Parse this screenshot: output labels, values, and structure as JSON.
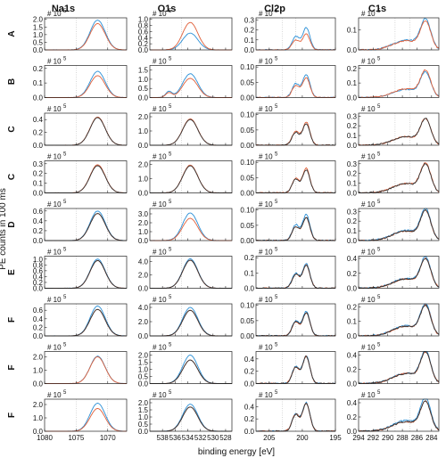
{
  "chart_data": {
    "type": "line",
    "column_titles": [
      "Na1s",
      "O1s",
      "Cl2p",
      "C1s"
    ],
    "row_labels": [
      "A",
      "B",
      "C",
      "C",
      "D",
      "E",
      "F",
      "F",
      "F"
    ],
    "ylabel": "PE counts in 100 ms",
    "xlabel": "binding energy [eV]",
    "scale_label": "# 10",
    "scale_exponent": "5",
    "colors": {
      "series_blue": "#2a8fd6",
      "series_red": "#e0603a",
      "series_dark": "#333333",
      "guide": "#9a9a9a"
    },
    "x_axes": [
      {
        "range": [
          1080,
          1067
        ],
        "ticks": [
          1080,
          1075,
          1070
        ],
        "guides": [
          1075,
          1070
        ]
      },
      {
        "range": [
          540,
          527
        ],
        "ticks": [
          538,
          536,
          534,
          532,
          530,
          528
        ],
        "guides": [
          535
        ]
      },
      {
        "range": [
          207,
          195
        ],
        "ticks": [
          205,
          200,
          195
        ],
        "guides": [
          203,
          201
        ]
      },
      {
        "range": [
          294,
          283
        ],
        "ticks": [
          294,
          292,
          290,
          288,
          286,
          284
        ],
        "guides": [
          289,
          287
        ]
      }
    ],
    "peaks": [
      {
        "center": 1071.6,
        "width": 1.2
      },
      {
        "center": 533.6,
        "width": 1.2
      },
      {
        "center": 199.4,
        "width": 0.55,
        "split": 1.6,
        "ratio": 0.6
      },
      {
        "center": 284.8,
        "width": 0.7
      }
    ],
    "panels": [
      [
        {
          "ylim": [
            0,
            2.1
          ],
          "ticks": [
            "2.0",
            "1.5",
            "1.0",
            "0.5",
            "0.0"
          ],
          "tick_values": [
            2.0,
            1.5,
            1.0,
            0.5,
            0.0
          ],
          "blue": 1.95,
          "red": 1.72,
          "dark": null
        },
        {
          "ylim": [
            0,
            1.05
          ],
          "ticks": [
            "1.0",
            "0.8",
            "0.6",
            "0.4",
            "0.2",
            "0.0"
          ],
          "tick_values": [
            1.0,
            0.8,
            0.6,
            0.4,
            0.2,
            0.0
          ],
          "blue": 0.55,
          "red": 0.9,
          "dark": null
        },
        {
          "ylim": [
            0,
            0.32
          ],
          "ticks": [
            "0.3",
            "0.2",
            "0.1",
            "0.0"
          ],
          "tick_values": [
            0.3,
            0.2,
            0.1,
            0.0
          ],
          "blue": 0.22,
          "red": 0.16,
          "dark": null
        },
        {
          "ylim": [
            0,
            0.16
          ],
          "ticks": [
            "0.1",
            "0.0"
          ],
          "tick_values": [
            0.1,
            0.0
          ],
          "blue": 0.14,
          "red": 0.13,
          "dark": null
        }
      ],
      [
        {
          "ylim": [
            0,
            0.22
          ],
          "ticks": [
            "0.2",
            "0.1",
            "0.0"
          ],
          "tick_values": [
            0.2,
            0.1,
            0.0
          ],
          "blue": 0.18,
          "red": 0.15,
          "dark": null
        },
        {
          "ylim": [
            0,
            1.75
          ],
          "ticks": [
            "1.5",
            "1.0",
            "0.5",
            "0.0"
          ],
          "tick_values": [
            1.5,
            1.0,
            0.5,
            0.0
          ],
          "blue": 1.3,
          "red": 1.05,
          "dark": null
        },
        {
          "ylim": [
            0,
            0.105
          ],
          "ticks": [
            "0.10",
            "0.05",
            "0.00"
          ],
          "tick_values": [
            0.1,
            0.05,
            0.0
          ],
          "blue": 0.075,
          "red": 0.065,
          "dark": null
        },
        {
          "ylim": [
            0,
            0.22
          ],
          "ticks": [
            "0.2",
            "0.1",
            "0.0"
          ],
          "tick_values": [
            0.2,
            0.1,
            0.0
          ],
          "blue": 0.16,
          "red": 0.17,
          "dark": null
        }
      ],
      [
        {
          "ylim": [
            0,
            0.5
          ],
          "ticks": [
            "0.4",
            "0.2",
            "0.0"
          ],
          "tick_values": [
            0.4,
            0.2,
            0.0
          ],
          "blue": null,
          "red": 0.44,
          "dark": 0.43
        },
        {
          "ylim": [
            0,
            2.25
          ],
          "ticks": [
            "2.0",
            "1.0",
            "0.0"
          ],
          "tick_values": [
            2.0,
            1.0,
            0.0
          ],
          "blue": null,
          "red": 1.85,
          "dark": 1.8
        },
        {
          "ylim": [
            0,
            0.105
          ],
          "ticks": [
            "0.10",
            "0.05",
            "0.00"
          ],
          "tick_values": [
            0.1,
            0.05,
            0.0
          ],
          "blue": null,
          "red": 0.075,
          "dark": 0.07
        },
        {
          "ylim": [
            0,
            0.33
          ],
          "ticks": [
            "0.3",
            "0.2",
            "0.1",
            "0.0"
          ],
          "tick_values": [
            0.3,
            0.2,
            0.1,
            0.0
          ],
          "blue": null,
          "red": 0.25,
          "dark": 0.25
        }
      ],
      [
        {
          "ylim": [
            0,
            0.33
          ],
          "ticks": [
            "0.3",
            "0.2",
            "0.1",
            "0.0"
          ],
          "tick_values": [
            0.3,
            0.2,
            0.1,
            0.0
          ],
          "blue": null,
          "red": 0.29,
          "dark": 0.28
        },
        {
          "ylim": [
            0,
            2.25
          ],
          "ticks": [
            "2.0",
            "1.0",
            "0.0"
          ],
          "tick_values": [
            2.0,
            1.0,
            0.0
          ],
          "blue": null,
          "red": 1.95,
          "dark": 1.9
        },
        {
          "ylim": [
            0,
            0.105
          ],
          "ticks": [
            "0.10",
            "0.05",
            "0.00"
          ],
          "tick_values": [
            0.1,
            0.05,
            0.0
          ],
          "blue": null,
          "red": 0.08,
          "dark": 0.075
        },
        {
          "ylim": [
            0,
            0.33
          ],
          "ticks": [
            "0.3",
            "0.2",
            "0.1",
            "0.0"
          ],
          "tick_values": [
            0.3,
            0.2,
            0.1,
            0.0
          ],
          "blue": null,
          "red": 0.28,
          "dark": 0.27
        }
      ],
      [
        {
          "ylim": [
            0,
            0.65
          ],
          "ticks": [
            "0.6",
            "0.4",
            "0.2",
            "0.0"
          ],
          "tick_values": [
            0.6,
            0.4,
            0.2,
            0.0
          ],
          "blue": 0.6,
          "red": 0.55,
          "dark": 0.55
        },
        {
          "ylim": [
            0,
            3.6
          ],
          "ticks": [
            "3.0",
            "2.0",
            "1.0",
            "0.0"
          ],
          "tick_values": [
            3.0,
            2.0,
            1.0,
            0.0
          ],
          "blue": 3.1,
          "red": 2.5,
          "dark": null
        },
        {
          "ylim": [
            0,
            0.105
          ],
          "ticks": [
            "0.10",
            "0.05",
            "0.00"
          ],
          "tick_values": [
            0.1,
            0.05,
            0.0
          ],
          "blue": 0.085,
          "red": 0.075,
          "dark": 0.075
        },
        {
          "ylim": [
            0,
            0.33
          ],
          "ticks": [
            "0.3",
            "0.2",
            "0.1",
            "0.0"
          ],
          "tick_values": [
            0.3,
            0.2,
            0.1,
            0.0
          ],
          "blue": 0.3,
          "red": 0.28,
          "dark": 0.28
        }
      ],
      [
        {
          "ylim": [
            0,
            1.1
          ],
          "ticks": [
            "1.0",
            "0.8",
            "0.6",
            "0.4",
            "0.2",
            "0.0"
          ],
          "tick_values": [
            1.0,
            0.8,
            0.6,
            0.4,
            0.2,
            0.0
          ],
          "blue": 1.0,
          "red": 0.95,
          "dark": 0.95
        },
        {
          "ylim": [
            0,
            4.8
          ],
          "ticks": [
            "4.0",
            "2.0",
            "0.0"
          ],
          "tick_values": [
            4.0,
            2.0,
            0.0
          ],
          "blue": 4.4,
          "red": 4.2,
          "dark": 4.2
        },
        {
          "ylim": [
            0,
            0.21
          ],
          "ticks": [
            "0.2",
            "0.1",
            "0.0"
          ],
          "tick_values": [
            0.2,
            0.1,
            0.0
          ],
          "blue": 0.16,
          "red": 0.15,
          "dark": 0.15
        },
        {
          "ylim": [
            0,
            0.43
          ],
          "ticks": [
            "0.4",
            "0.2",
            "0.0"
          ],
          "tick_values": [
            0.4,
            0.2,
            0.0
          ],
          "blue": 0.38,
          "red": 0.36,
          "dark": 0.36
        }
      ],
      [
        {
          "ylim": [
            0,
            0.75
          ],
          "ticks": [
            "0.6",
            "0.4",
            "0.2",
            "0.0"
          ],
          "tick_values": [
            0.6,
            0.4,
            0.2,
            0.0
          ],
          "blue": 0.7,
          "red": 0.62,
          "dark": 0.62
        },
        {
          "ylim": [
            0,
            4.5
          ],
          "ticks": [
            "4.0",
            "2.0",
            "0.0"
          ],
          "tick_values": [
            4.0,
            2.0,
            0.0
          ],
          "blue": 4.0,
          "red": 3.6,
          "dark": 3.6
        },
        {
          "ylim": [
            0,
            0.105
          ],
          "ticks": [
            "0.10",
            "0.05",
            "0.00"
          ],
          "tick_values": [
            0.1,
            0.05,
            0.0
          ],
          "blue": 0.08,
          "red": 0.075,
          "dark": 0.075
        },
        {
          "ylim": [
            0,
            0.22
          ],
          "ticks": [
            "0.2",
            "0.1",
            "0.0"
          ],
          "tick_values": [
            0.2,
            0.1,
            0.0
          ],
          "blue": 0.2,
          "red": 0.19,
          "dark": 0.19
        }
      ],
      [
        {
          "ylim": [
            0,
            2.4
          ],
          "ticks": [
            "2.0",
            "1.0",
            "0.0"
          ],
          "tick_values": [
            2.0,
            1.0,
            0.0
          ],
          "blue": 2.05,
          "red": 2.0,
          "dark": null
        },
        {
          "ylim": [
            0,
            2.25
          ],
          "ticks": [
            "2.0",
            "1.5",
            "1.0",
            "0.5",
            "0.0"
          ],
          "tick_values": [
            2.0,
            1.5,
            1.0,
            0.5,
            0.0
          ],
          "blue": 2.0,
          "red": 1.65,
          "dark": 1.65
        },
        {
          "ylim": [
            0,
            0.52
          ],
          "ticks": [
            "0.4",
            "0.2",
            "0.0"
          ],
          "tick_values": [
            0.4,
            0.2,
            0.0
          ],
          "blue": 0.45,
          "red": 0.44,
          "dark": 0.44
        },
        {
          "ylim": [
            0,
            0.45
          ],
          "ticks": [
            "0.4",
            "0.2",
            "0.0"
          ],
          "tick_values": [
            0.4,
            0.2,
            0.0
          ],
          "blue": 0.42,
          "red": 0.4,
          "dark": 0.4
        }
      ],
      [
        {
          "ylim": [
            0,
            2.4
          ],
          "ticks": [
            "2.0",
            "1.0",
            "0.0"
          ],
          "tick_values": [
            2.0,
            1.0,
            0.0
          ],
          "blue": 2.1,
          "red": 1.7,
          "dark": null
        },
        {
          "ylim": [
            0,
            2.25
          ],
          "ticks": [
            "2.0",
            "1.5",
            "1.0",
            "0.5",
            "0.0"
          ],
          "tick_values": [
            2.0,
            1.5,
            1.0,
            0.5,
            0.0
          ],
          "blue": 1.9,
          "red": 1.7,
          "dark": 1.7
        },
        {
          "ylim": [
            0,
            0.52
          ],
          "ticks": [
            "0.4",
            "0.2",
            "0.0"
          ],
          "tick_values": [
            0.4,
            0.2,
            0.0
          ],
          "blue": 0.46,
          "red": 0.45,
          "dark": 0.45
        },
        {
          "ylim": [
            0,
            0.45
          ],
          "ticks": [
            "0.4",
            "0.2",
            "0.0"
          ],
          "tick_values": [
            0.4,
            0.2,
            0.0
          ],
          "blue": 0.43,
          "red": 0.38,
          "dark": 0.38
        }
      ]
    ]
  }
}
